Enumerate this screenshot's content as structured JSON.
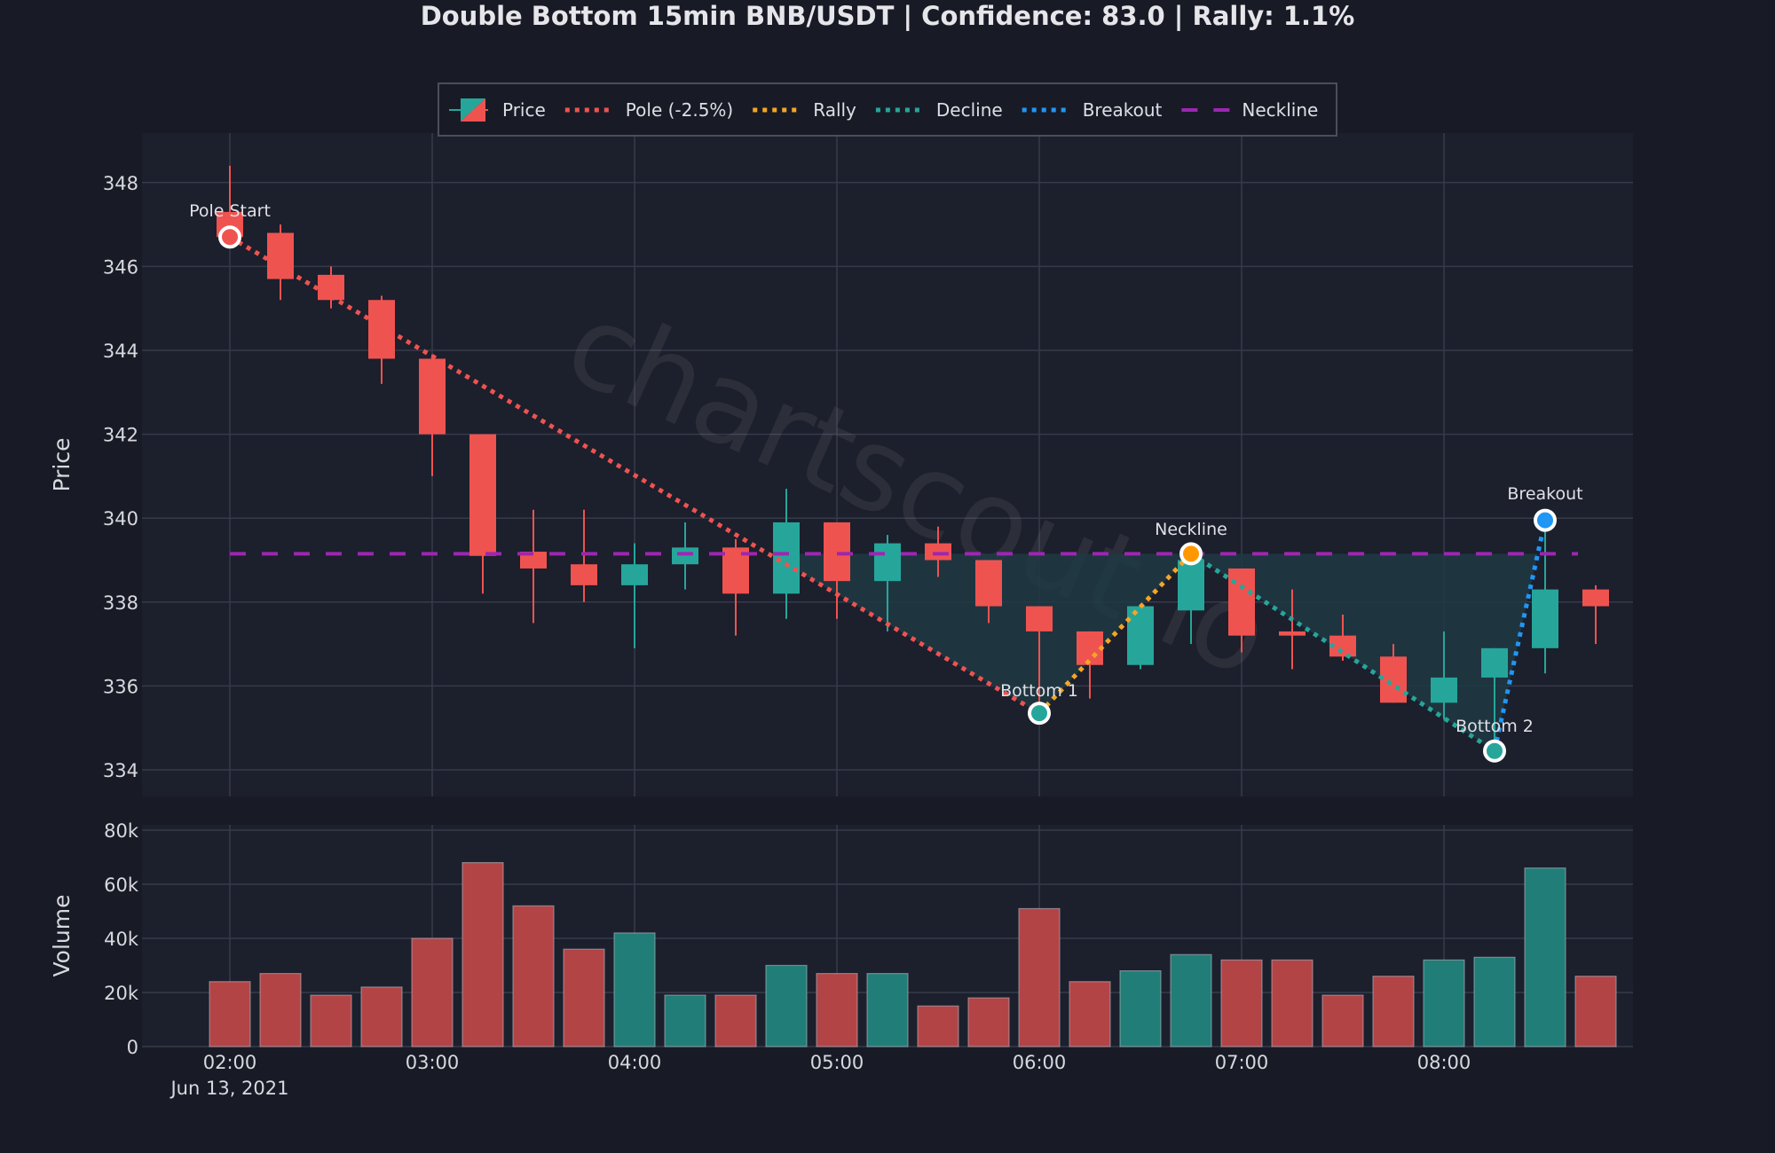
{
  "title": "Double Bottom 15min BNB/USDT | Confidence: 83.0 | Rally: 1.1%",
  "watermark": "chartscout.io",
  "colors": {
    "background": "#181b26",
    "plot_bg": "#1c1f2c",
    "grid": "#363a4a",
    "up": "#26a69a",
    "down": "#ef5350",
    "pole": "#ef5350",
    "rally": "#f5a623",
    "decline": "#26a69a",
    "breakout": "#2196f3",
    "neckline": "#9c27b0",
    "fill": "#1f3a44"
  },
  "legend": {
    "items": [
      {
        "label": "Price",
        "type": "candle"
      },
      {
        "label": "Pole (-2.5%)",
        "type": "dotted",
        "color": "#ef5350"
      },
      {
        "label": "Rally",
        "type": "dotted",
        "color": "#f5a623"
      },
      {
        "label": "Decline",
        "type": "dotted",
        "color": "#26a69a"
      },
      {
        "label": "Breakout",
        "type": "dotted",
        "color": "#2196f3"
      },
      {
        "label": "Neckline",
        "type": "dashed",
        "color": "#9c27b0"
      }
    ]
  },
  "axes": {
    "price_label": "Price",
    "volume_label": "Volume",
    "price_ticks": [
      "348",
      "346",
      "344",
      "342",
      "340",
      "338",
      "336",
      "334"
    ],
    "volume_ticks": [
      "80k",
      "60k",
      "40k",
      "20k",
      "0"
    ],
    "time_ticks": [
      "02:00",
      "03:00",
      "04:00",
      "05:00",
      "06:00",
      "07:00",
      "08:00"
    ],
    "date_label": "Jun 13, 2021"
  },
  "annotations": {
    "pole_start": "Pole Start",
    "bottom1": "Bottom 1",
    "neckline": "Neckline",
    "bottom2": "Bottom 2",
    "breakout": "Breakout"
  },
  "chart_data": {
    "type": "candlestick",
    "title": "Double Bottom 15min BNB/USDT | Confidence: 83.0 | Rally: 1.1%",
    "xlabel": "",
    "ylabel": "Price",
    "ylim": [
      333.4,
      349.2
    ],
    "volume_ylabel": "Volume",
    "volume_ylim": [
      0,
      82000
    ],
    "grid": true,
    "legend_position": "top-center",
    "categories": [
      "02:00",
      "02:15",
      "02:30",
      "02:45",
      "03:00",
      "03:15",
      "03:30",
      "03:45",
      "04:00",
      "04:15",
      "04:30",
      "04:45",
      "05:00",
      "05:15",
      "05:30",
      "05:45",
      "06:00",
      "06:15",
      "06:30",
      "06:45",
      "07:00",
      "07:15",
      "07:30",
      "07:45",
      "08:00",
      "08:15",
      "08:30",
      "08:45"
    ],
    "open": [
      347.3,
      346.8,
      345.8,
      345.2,
      343.8,
      342.0,
      339.2,
      338.9,
      338.4,
      338.9,
      339.3,
      338.2,
      339.9,
      338.5,
      339.4,
      339.0,
      337.9,
      337.3,
      336.5,
      337.8,
      338.8,
      337.3,
      337.2,
      336.7,
      335.6,
      336.2,
      336.9,
      338.3
    ],
    "high": [
      348.4,
      347.0,
      346.0,
      345.3,
      343.9,
      342.0,
      340.2,
      340.2,
      339.4,
      339.9,
      339.5,
      340.7,
      339.9,
      339.6,
      339.8,
      339.0,
      337.9,
      337.3,
      337.9,
      339.1,
      338.8,
      338.3,
      337.7,
      337.0,
      337.3,
      336.9,
      339.9,
      338.4
    ],
    "low": [
      346.7,
      345.2,
      345.0,
      343.2,
      341.0,
      338.2,
      337.5,
      338.0,
      336.9,
      338.3,
      337.2,
      337.6,
      337.6,
      337.3,
      338.6,
      337.5,
      335.4,
      335.7,
      336.4,
      337.0,
      336.8,
      336.4,
      336.6,
      335.6,
      335.2,
      334.4,
      336.3,
      337.0
    ],
    "close": [
      346.7,
      345.7,
      345.2,
      343.8,
      342.0,
      339.1,
      338.8,
      338.4,
      338.9,
      339.3,
      338.2,
      339.9,
      338.5,
      339.4,
      339.0,
      337.9,
      337.3,
      336.5,
      337.9,
      339.0,
      337.2,
      337.2,
      336.7,
      335.6,
      336.2,
      336.9,
      338.3,
      337.9
    ],
    "volume": [
      24000,
      27000,
      19000,
      22000,
      40000,
      68000,
      52000,
      36000,
      42000,
      19000,
      19000,
      30000,
      27000,
      27000,
      15000,
      18000,
      51000,
      24000,
      28000,
      34000,
      32000,
      32000,
      19000,
      26000,
      32000,
      33000,
      66000,
      26000
    ],
    "pattern": {
      "neckline": 339.15,
      "pole_start": {
        "time": "02:00",
        "price": 346.7
      },
      "bottom1": {
        "time": "06:00",
        "price": 335.35
      },
      "neckline_peak": {
        "time": "06:45",
        "price": 339.15
      },
      "bottom2": {
        "time": "08:15",
        "price": 334.45
      },
      "breakout": {
        "time": "08:30",
        "price": 339.95
      },
      "pole_pct": -2.5,
      "rally_pct": 1.1,
      "confidence": 83.0
    }
  }
}
